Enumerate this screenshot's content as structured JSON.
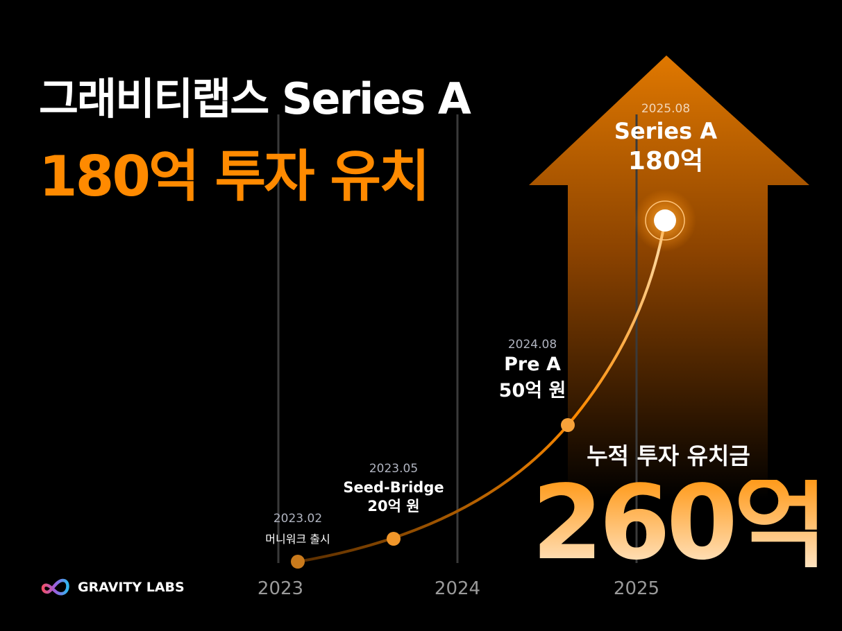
{
  "headline": {
    "line1": "그래비티랩스 Series A",
    "line2": "180억 투자 유치"
  },
  "colors": {
    "accent": "#ff8a00",
    "background": "#000000"
  },
  "milestones": [
    {
      "date": "2023.02",
      "label": "머니워크 출시",
      "amount": ""
    },
    {
      "date": "2023.05",
      "label": "Seed-Bridge",
      "amount": "20억 원"
    },
    {
      "date": "2024.08",
      "label": "Pre A",
      "amount": "50억 원"
    },
    {
      "date": "2025.08",
      "label": "Series A",
      "amount": "180억"
    }
  ],
  "years": [
    "2023",
    "2024",
    "2025"
  ],
  "cumulative": {
    "label": "누적 투자 유치금",
    "value": "260억"
  },
  "brand": {
    "name": "GRAVITY LABS",
    "icon": "infinity-logo-icon"
  }
}
